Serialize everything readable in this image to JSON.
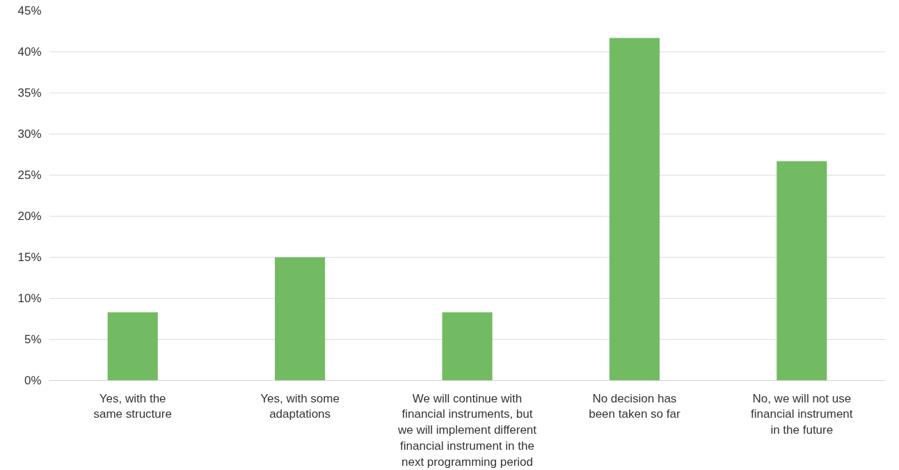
{
  "chart_data": {
    "type": "bar",
    "categories": [
      "Yes, with the\nsame structure",
      "Yes, with some\nadaptations",
      "We will continue with\nfinancial instruments, but\nwe will implement different\nfinancial instrument in the\nnext programming period",
      "No decision has\nbeen taken so far",
      "No, we will not use\nfinancial instrument\nin the future"
    ],
    "values": [
      8.3,
      15,
      8.3,
      41.7,
      26.7
    ],
    "color": "#72bb63",
    "ylim": [
      0,
      45
    ],
    "yticks": [
      {
        "value": 0,
        "label": "0%"
      },
      {
        "value": 5,
        "label": "5%"
      },
      {
        "value": 10,
        "label": "10%"
      },
      {
        "value": 15,
        "label": "15%"
      },
      {
        "value": 20,
        "label": "20%"
      },
      {
        "value": 25,
        "label": "25%"
      },
      {
        "value": 30,
        "label": "30%"
      },
      {
        "value": 35,
        "label": "35%"
      },
      {
        "value": 40,
        "label": "40%"
      },
      {
        "value": 45,
        "label": "45%"
      }
    ],
    "grid": "y"
  }
}
